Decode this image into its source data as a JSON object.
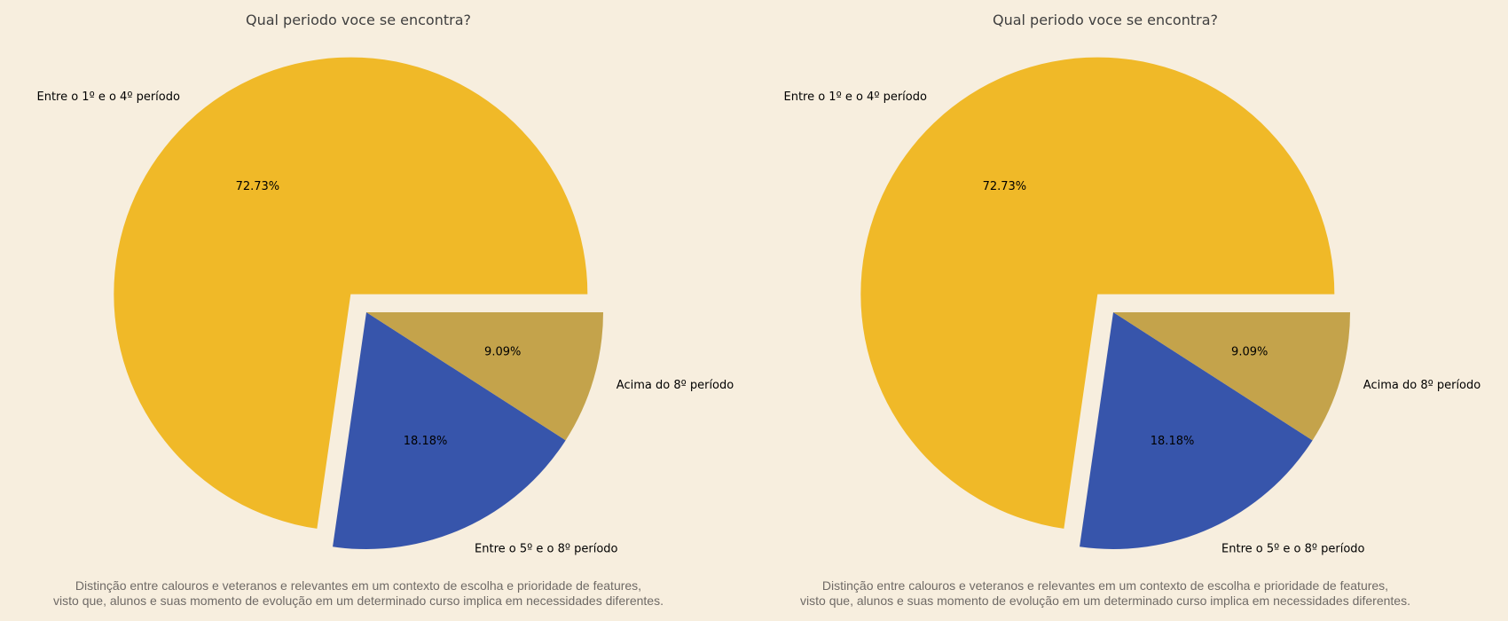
{
  "chart_data": [
    {
      "type": "pie",
      "title": "Qual periodo voce se encontra?",
      "labels": [
        "Entre o 1º e o 4º período",
        "Entre o 5º e o 8º período",
        "Acima do 8º período"
      ],
      "values": [
        72.73,
        18.18,
        9.09
      ],
      "percent_labels": [
        "72.73%",
        "18.18%",
        "9.09%"
      ],
      "colors": [
        "#f0b928",
        "#3755ab",
        "#c4a34b"
      ],
      "exploded": [
        true,
        false,
        false
      ],
      "caption": [
        "Distinção entre calouros e veteranos e relevantes em um contexto de escolha e prioridade de features,",
        "visto que, alunos e suas momento de evolução em um determinado curso implica em necessidades diferentes."
      ]
    },
    {
      "type": "pie",
      "title": "Qual periodo voce se encontra?",
      "labels": [
        "Entre o 1º e o 4º período",
        "Entre o 5º e o 8º período",
        "Acima do 8º período"
      ],
      "values": [
        72.73,
        18.18,
        9.09
      ],
      "percent_labels": [
        "72.73%",
        "18.18%",
        "9.09%"
      ],
      "colors": [
        "#f0b928",
        "#3755ab",
        "#c4a34b"
      ],
      "exploded": [
        true,
        false,
        false
      ],
      "caption": [
        "Distinção entre calouros e veteranos e relevantes em um contexto de escolha e prioridade de features,",
        "visto que, alunos e suas momento de evolução em um determinado curso implica em necessidades diferentes."
      ]
    }
  ]
}
